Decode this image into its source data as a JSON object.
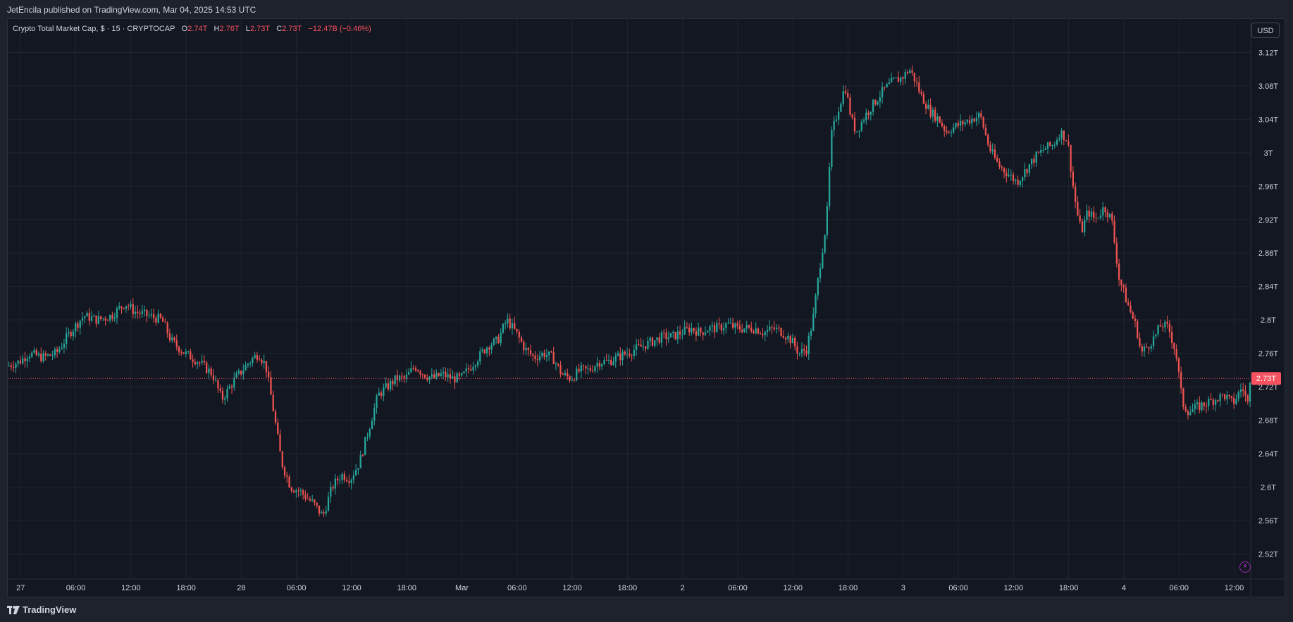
{
  "header": {
    "publisher": "JetEncila",
    "published_text": "JetEncila published on TradingView.com, Mar 04, 2025 14:53 UTC"
  },
  "legend": {
    "symbol": "Crypto Total Market Cap, $ · 15 · CRYPTOCAP",
    "o_label": "O",
    "o_value": "2.74T",
    "h_label": "H",
    "h_value": "2.76T",
    "l_label": "L",
    "l_value": "2.73T",
    "c_label": "C",
    "c_value": "2.73T",
    "change": "−12.47B (−0.46%)"
  },
  "currency_button": "USD",
  "footer": {
    "brand": "TradingView"
  },
  "colors": {
    "up": "#26a69a",
    "down": "#ef5350",
    "grid": "#1f2430",
    "axis_text": "#d1d4dc",
    "price_label_bg": "#f7525f",
    "background": "#131722"
  },
  "chart_data": {
    "type": "candlestick",
    "title": "Crypto Total Market Cap, $ · 15 · CRYPTOCAP",
    "ylabel": "",
    "xlabel": "",
    "ylim": [
      2.49,
      3.16
    ],
    "yticks": [
      "3.12T",
      "3.08T",
      "3.04T",
      "3T",
      "2.96T",
      "2.92T",
      "2.88T",
      "2.84T",
      "2.8T",
      "2.76T",
      "2.72T",
      "2.68T",
      "2.64T",
      "2.6T",
      "2.56T",
      "2.52T"
    ],
    "ytick_values": [
      3.12,
      3.08,
      3.04,
      3.0,
      2.96,
      2.92,
      2.88,
      2.84,
      2.8,
      2.76,
      2.72,
      2.68,
      2.64,
      2.6,
      2.56,
      2.52
    ],
    "xticks": [
      "27",
      "06:00",
      "12:00",
      "18:00",
      "28",
      "06:00",
      "12:00",
      "18:00",
      "Mar",
      "06:00",
      "12:00",
      "18:00",
      "2",
      "06:00",
      "12:00",
      "18:00",
      "3",
      "06:00",
      "12:00",
      "18:00",
      "4",
      "06:00",
      "12:00"
    ],
    "xtick_hours": [
      0,
      6,
      12,
      18,
      24,
      30,
      36,
      42,
      48,
      54,
      60,
      66,
      72,
      78,
      84,
      90,
      96,
      102,
      108,
      114,
      120,
      126,
      132
    ],
    "x_range_hours": [
      -1.4,
      133.8
    ],
    "last_price": 2.73,
    "last_price_label": "2.73T",
    "interval_minutes": 15,
    "path_points": [
      [
        -1.4,
        2.745
      ],
      [
        0,
        2.75
      ],
      [
        1,
        2.76
      ],
      [
        2.5,
        2.755
      ],
      [
        4,
        2.76
      ],
      [
        5.5,
        2.785
      ],
      [
        7,
        2.805
      ],
      [
        8.5,
        2.8
      ],
      [
        10,
        2.805
      ],
      [
        11.5,
        2.82
      ],
      [
        12.5,
        2.81
      ],
      [
        14,
        2.805
      ],
      [
        15.5,
        2.8
      ],
      [
        16.5,
        2.775
      ],
      [
        18,
        2.76
      ],
      [
        19.5,
        2.75
      ],
      [
        21,
        2.735
      ],
      [
        22,
        2.705
      ],
      [
        23.5,
        2.73
      ],
      [
        25,
        2.75
      ],
      [
        26,
        2.76
      ],
      [
        26.8,
        2.745
      ],
      [
        27.5,
        2.7
      ],
      [
        28.5,
        2.63
      ],
      [
        29.5,
        2.6
      ],
      [
        30.5,
        2.595
      ],
      [
        32,
        2.58
      ],
      [
        33,
        2.565
      ],
      [
        34,
        2.6
      ],
      [
        35,
        2.615
      ],
      [
        36,
        2.61
      ],
      [
        37,
        2.63
      ],
      [
        38,
        2.67
      ],
      [
        39,
        2.71
      ],
      [
        40,
        2.72
      ],
      [
        41,
        2.73
      ],
      [
        42,
        2.73
      ],
      [
        43,
        2.745
      ],
      [
        44,
        2.735
      ],
      [
        45,
        2.73
      ],
      [
        46,
        2.735
      ],
      [
        47,
        2.73
      ],
      [
        48,
        2.73
      ],
      [
        49.5,
        2.75
      ],
      [
        51,
        2.77
      ],
      [
        52,
        2.775
      ],
      [
        53,
        2.8
      ],
      [
        54,
        2.785
      ],
      [
        55,
        2.765
      ],
      [
        56,
        2.755
      ],
      [
        57,
        2.76
      ],
      [
        58,
        2.755
      ],
      [
        59,
        2.735
      ],
      [
        60,
        2.73
      ],
      [
        61,
        2.74
      ],
      [
        62,
        2.74
      ],
      [
        63,
        2.75
      ],
      [
        64,
        2.75
      ],
      [
        65,
        2.755
      ],
      [
        66,
        2.76
      ],
      [
        67,
        2.765
      ],
      [
        68,
        2.77
      ],
      [
        69,
        2.775
      ],
      [
        70,
        2.78
      ],
      [
        71,
        2.78
      ],
      [
        72,
        2.785
      ],
      [
        73,
        2.79
      ],
      [
        74,
        2.785
      ],
      [
        75,
        2.79
      ],
      [
        76,
        2.79
      ],
      [
        77,
        2.795
      ],
      [
        78,
        2.79
      ],
      [
        79,
        2.79
      ],
      [
        80,
        2.79
      ],
      [
        81,
        2.785
      ],
      [
        82,
        2.79
      ],
      [
        83,
        2.785
      ],
      [
        84,
        2.775
      ],
      [
        84.8,
        2.76
      ],
      [
        85.6,
        2.765
      ],
      [
        86.3,
        2.8
      ],
      [
        87,
        2.86
      ],
      [
        87.8,
        2.92
      ],
      [
        88.3,
        3.02
      ],
      [
        89,
        3.05
      ],
      [
        89.8,
        3.08
      ],
      [
        90.5,
        3.04
      ],
      [
        91,
        3.025
      ],
      [
        92,
        3.045
      ],
      [
        93,
        3.06
      ],
      [
        94,
        3.075
      ],
      [
        95,
        3.085
      ],
      [
        96,
        3.09
      ],
      [
        96.8,
        3.1
      ],
      [
        97.5,
        3.085
      ],
      [
        98,
        3.07
      ],
      [
        99,
        3.05
      ],
      [
        100,
        3.04
      ],
      [
        100.8,
        3.025
      ],
      [
        101.5,
        3.03
      ],
      [
        102.5,
        3.035
      ],
      [
        103.5,
        3.04
      ],
      [
        104.5,
        3.045
      ],
      [
        105.5,
        3.005
      ],
      [
        106.5,
        2.985
      ],
      [
        107.5,
        2.975
      ],
      [
        108.5,
        2.965
      ],
      [
        109.5,
        2.98
      ],
      [
        110.5,
        2.995
      ],
      [
        111.5,
        3.005
      ],
      [
        112.5,
        3.01
      ],
      [
        113.2,
        3.025
      ],
      [
        114,
        3.015
      ],
      [
        114.6,
        2.96
      ],
      [
        115,
        2.93
      ],
      [
        115.5,
        2.905
      ],
      [
        116.2,
        2.93
      ],
      [
        117,
        2.92
      ],
      [
        118,
        2.935
      ],
      [
        118.8,
        2.92
      ],
      [
        119.6,
        2.85
      ],
      [
        120.5,
        2.82
      ],
      [
        121.5,
        2.79
      ],
      [
        122,
        2.76
      ],
      [
        122.8,
        2.77
      ],
      [
        123.5,
        2.78
      ],
      [
        124.2,
        2.795
      ],
      [
        125,
        2.79
      ],
      [
        125.8,
        2.76
      ],
      [
        126.5,
        2.7
      ],
      [
        127.2,
        2.69
      ],
      [
        128,
        2.695
      ],
      [
        129,
        2.7
      ],
      [
        130,
        2.705
      ],
      [
        131,
        2.71
      ],
      [
        132,
        2.7
      ],
      [
        133,
        2.72
      ],
      [
        133.6,
        2.7
      ],
      [
        133.8,
        2.73
      ]
    ]
  }
}
